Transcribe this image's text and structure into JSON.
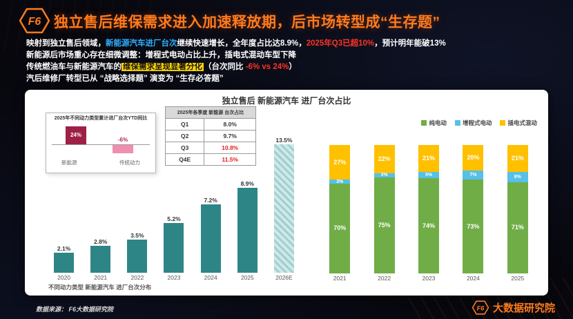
{
  "colors": {
    "title_orange": "#ff7b1c",
    "cyan": "#2eb0ff",
    "red": "#ff3226",
    "yellow_highlight": "#ffd400",
    "teal_bar": "#2e8585",
    "green": "#70ad47",
    "blue": "#55c0e8",
    "amber": "#ffc000",
    "ytd_dark_red": "#9e2046",
    "ytd_pink": "#ef8fae"
  },
  "header": {
    "logo_text": "F6",
    "title": "独立售后维保需求进入加速释放期，后市场转型成“生存题”"
  },
  "insights": {
    "line1": {
      "p1": "映射到独立售后领域，",
      "p2": "新能源汽车进厂台次",
      "p3": "继续快速增长，全年度占比达8.9%，",
      "p4": "2025年Q3已超10%",
      "p5": "，预计明年能破13%"
    },
    "line2": "新能源后市场重心存在细微调整：增程式电动占比上升，插电式混动车型下降",
    "line3": {
      "p1": "传统燃油车与新能源汽车的",
      "p2": "维保需求呈现显著分化",
      "p3": "（台次同比 ",
      "p4": "-6% vs 24%",
      "p5": "）"
    },
    "line4": {
      "p1": "汽后维修厂转型已从 ",
      "p2": "“战略选择题”",
      "p3": " 演变为 ",
      "p4": "“生存必答题”"
    }
  },
  "card": {
    "title": "独立售后 新能源汽车 进厂台次占比"
  },
  "chart_data": [
    {
      "id": "ytd_compare",
      "type": "bar",
      "title": "2025年不同动力类型累计进厂台次YTD同比",
      "categories": [
        "新能源",
        "传统动力"
      ],
      "values": [
        24,
        -6
      ],
      "labels": [
        "24%",
        "-6%"
      ],
      "colors": [
        "#9e2046",
        "#ef8fae"
      ]
    },
    {
      "id": "quarterly_share",
      "type": "table",
      "title": "2025年各季度 新能源 台次占比",
      "rows": [
        {
          "label": "Q1",
          "value": "8.0%",
          "highlight": false
        },
        {
          "label": "Q2",
          "value": "9.7%",
          "highlight": false
        },
        {
          "label": "Q3",
          "value": "10.8%",
          "highlight": true
        },
        {
          "label": "Q4E",
          "value": "11.5%",
          "highlight": true
        }
      ]
    },
    {
      "id": "yearly_share",
      "type": "bar",
      "title": "不同动力类型 新能源汽车 进厂台次分布",
      "categories": [
        "2020",
        "2021",
        "2022",
        "2023",
        "2024",
        "2025",
        "2026E"
      ],
      "values": [
        2.1,
        2.8,
        3.5,
        5.2,
        7.2,
        8.9,
        13.5
      ],
      "labels": [
        "2.1%",
        "2.8%",
        "3.5%",
        "5.2%",
        "7.2%",
        "8.9%",
        "13.5%"
      ],
      "ylim": [
        0,
        14.5
      ],
      "bar_color": "#2e8585",
      "forecast_last": true,
      "grid": false
    },
    {
      "id": "powertrain_mix",
      "type": "bar",
      "stacked": true,
      "title": "独立售后 新能源汽车 进厂台次占比",
      "categories": [
        "2021",
        "2022",
        "2023",
        "2024",
        "2025"
      ],
      "series": [
        {
          "name": "纯电动",
          "color": "#70ad47",
          "values": [
            70,
            75,
            74,
            73,
            71
          ]
        },
        {
          "name": "增程式电动",
          "color": "#55c0e8",
          "values": [
            3,
            3,
            5,
            7,
            8
          ]
        },
        {
          "name": "插电式混动",
          "color": "#ffc000",
          "values": [
            27,
            22,
            21,
            20,
            21
          ]
        }
      ],
      "unit": "%",
      "ylim": [
        0,
        100
      ],
      "legend_position": "top-right",
      "grid": false
    }
  ],
  "footer": {
    "source": "数据来源：  F6大数据研究院",
    "brand_logo": "F6",
    "brand_name": "大数据研究院"
  }
}
